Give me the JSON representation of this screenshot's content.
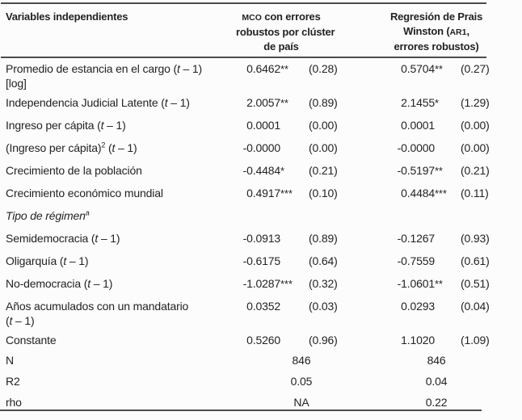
{
  "page": {
    "background_color": "#fcfcfc",
    "text_color": "#232323",
    "rule_color": "#4c4c4c"
  },
  "table": {
    "header": {
      "col1": [
        {
          "x": "Variables independientes"
        }
      ],
      "col2": [
        {
          "x": "MCO",
          "sc": true
        },
        {
          "x": " con errores"
        },
        {
          "br": true
        },
        {
          "x": "robustos por clúster"
        },
        {
          "br": true
        },
        {
          "x": "de país"
        }
      ],
      "col3": [
        {
          "x": "Regresión de Prais"
        },
        {
          "br": true
        },
        {
          "x": "Winston ("
        },
        {
          "x": "AR1",
          "sc": true
        },
        {
          "x": ","
        },
        {
          "br": true
        },
        {
          "x": "errores robustos)"
        }
      ]
    },
    "rows": [
      {
        "type": "coef",
        "height": "h42",
        "label": [
          {
            "x": "Promedio de estancia en el cargo ("
          },
          {
            "x": "t",
            "it": true
          },
          {
            "x": " – 1)"
          },
          {
            "br": true
          },
          {
            "x": "[log]"
          }
        ],
        "m1": {
          "coef": "0.6462",
          "stars": "**",
          "se": "(0.28)"
        },
        "m2": {
          "coef": "0.5704",
          "stars": "**",
          "se": "(0.27)"
        }
      },
      {
        "type": "coef",
        "height": "h28",
        "label": [
          {
            "x": "Independencia Judicial Latente ("
          },
          {
            "x": "t",
            "it": true
          },
          {
            "x": " – 1)"
          }
        ],
        "m1": {
          "coef": "2.0057",
          "stars": "**",
          "se": "(0.89)"
        },
        "m2": {
          "coef": "2.1455",
          "stars": "*",
          "se": "(1.29)"
        }
      },
      {
        "type": "coef",
        "height": "h28",
        "label": [
          {
            "x": "Ingreso per cápita ("
          },
          {
            "x": "t",
            "it": true
          },
          {
            "x": " – 1)"
          }
        ],
        "m1": {
          "coef": "0.0001",
          "stars": "",
          "se": "(0.00)"
        },
        "m2": {
          "coef": "0.0001",
          "stars": "",
          "se": "(0.00)"
        }
      },
      {
        "type": "coef",
        "height": "h28",
        "label": [
          {
            "x": "(Ingreso per cápita)"
          },
          {
            "x": "2",
            "sup": true
          },
          {
            "x": " ("
          },
          {
            "x": "t",
            "it": true
          },
          {
            "x": " – 1)"
          }
        ],
        "m1": {
          "coef": "-0.0000",
          "stars": "",
          "se": "(0.00)"
        },
        "m2": {
          "coef": "-0.0000",
          "stars": "",
          "se": "(0.00)"
        }
      },
      {
        "type": "coef",
        "height": "h28",
        "label": [
          {
            "x": "Crecimiento de la población"
          }
        ],
        "m1": {
          "coef": "-0.4484",
          "stars": "*",
          "se": "(0.21)"
        },
        "m2": {
          "coef": "-0.5197",
          "stars": "**",
          "se": "(0.21)"
        }
      },
      {
        "type": "coef",
        "height": "h28",
        "label": [
          {
            "x": "Crecimiento económico mundial"
          }
        ],
        "m1": {
          "coef": "0.4917",
          "stars": "***",
          "se": "(0.10)"
        },
        "m2": {
          "coef": "0.4484",
          "stars": "***",
          "se": "(0.11)"
        }
      },
      {
        "type": "section",
        "height": "h28",
        "label": [
          {
            "x": "Tipo de régimen",
            "it": true
          },
          {
            "x": "a",
            "it": true,
            "sup": true
          }
        ]
      },
      {
        "type": "coef",
        "height": "h28",
        "label": [
          {
            "x": "Semidemocracia ("
          },
          {
            "x": "t",
            "it": true
          },
          {
            "x": " – 1)"
          }
        ],
        "m1": {
          "coef": "-0.0913",
          "stars": "",
          "se": "(0.89)"
        },
        "m2": {
          "coef": "-0.1267",
          "stars": "",
          "se": "(0.93)"
        }
      },
      {
        "type": "coef",
        "height": "h28",
        "label": [
          {
            "x": "Oligarquía ("
          },
          {
            "x": "t",
            "it": true
          },
          {
            "x": " – 1)"
          }
        ],
        "m1": {
          "coef": "-0.6175",
          "stars": "",
          "se": "(0.64)"
        },
        "m2": {
          "coef": "-0.7559",
          "stars": "",
          "se": "(0.61)"
        }
      },
      {
        "type": "coef",
        "height": "h28",
        "label": [
          {
            "x": "No-democracia ("
          },
          {
            "x": "t",
            "it": true
          },
          {
            "x": " – 1)"
          }
        ],
        "m1": {
          "coef": "-1.0287",
          "stars": "***",
          "se": "(0.32)"
        },
        "m2": {
          "coef": "-1.0601",
          "stars": "**",
          "se": "(0.51)"
        }
      },
      {
        "type": "coef",
        "height": "h42",
        "label": [
          {
            "x": "Años acumulados con un mandatario"
          },
          {
            "br": true
          },
          {
            "x": "("
          },
          {
            "x": "t",
            "it": true
          },
          {
            "x": " – 1)"
          }
        ],
        "m1": {
          "coef": "0.0352",
          "stars": "",
          "se": "(0.03)"
        },
        "m2": {
          "coef": "0.0293",
          "stars": "",
          "se": "(0.04)"
        }
      },
      {
        "type": "coef",
        "height": "h28",
        "label": [
          {
            "x": "Constante"
          }
        ],
        "m1": {
          "coef": "0.5260",
          "stars": "",
          "se": "(0.96)"
        },
        "m2": {
          "coef": "1.1020",
          "stars": "",
          "se": "(1.09)"
        }
      },
      {
        "type": "summary",
        "height": "h26",
        "label": [
          {
            "x": "N"
          }
        ],
        "m1": "846",
        "m2": "846"
      },
      {
        "type": "summary",
        "height": "h26",
        "label": [
          {
            "x": "R2"
          }
        ],
        "m1": "0.05",
        "m2": "0.04"
      },
      {
        "type": "summary",
        "height": "h24",
        "label": [
          {
            "x": "rho"
          }
        ],
        "m1": "NA",
        "m2": "0.22"
      }
    ]
  }
}
